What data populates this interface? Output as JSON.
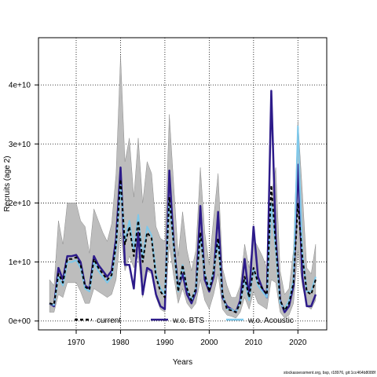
{
  "chart_data": {
    "type": "line",
    "xlabel": "Years",
    "ylabel": "Recruits (age 2)",
    "xlim": [
      1961.5,
      2026.5
    ],
    "ylim": [
      -1500000000,
      48000000000
    ],
    "x_ticks": [
      1970,
      1980,
      1990,
      2000,
      2010,
      2020
    ],
    "x_tick_labels": [
      "1970",
      "1980",
      "1990",
      "2000",
      "2010",
      "2020"
    ],
    "y_ticks": [
      0,
      10000000000,
      20000000000,
      30000000000,
      40000000000
    ],
    "y_tick_labels": [
      "0e+00",
      "1e+10",
      "2e+10",
      "3e+10",
      "4e+10"
    ],
    "grid": true,
    "legend_position": "bottom",
    "x": [
      1964,
      1965,
      1966,
      1967,
      1968,
      1969,
      1970,
      1971,
      1972,
      1973,
      1974,
      1975,
      1976,
      1977,
      1978,
      1979,
      1980,
      1981,
      1982,
      1983,
      1984,
      1985,
      1986,
      1987,
      1988,
      1989,
      1990,
      1991,
      1992,
      1993,
      1994,
      1995,
      1996,
      1997,
      1998,
      1999,
      2000,
      2001,
      2002,
      2003,
      2004,
      2005,
      2006,
      2007,
      2008,
      2009,
      2010,
      2011,
      2012,
      2013,
      2014,
      2015,
      2016,
      2017,
      2018,
      2019,
      2020,
      2021,
      2022,
      2023,
      2024
    ],
    "band": {
      "upper": [
        7.0,
        6.0,
        17.0,
        13.0,
        20.0,
        20.0,
        20.0,
        17.0,
        16.0,
        11.5,
        19.0,
        17.0,
        15.0,
        13.5,
        16.5,
        25.0,
        45.0,
        27.0,
        31.0,
        21.0,
        31.0,
        20.0,
        27.0,
        25.0,
        16.0,
        14.0,
        13.5,
        35.0,
        23.0,
        11.0,
        18.5,
        12.0,
        8.5,
        12.0,
        26.0,
        15.0,
        9.5,
        17.5,
        25.0,
        9.0,
        6.0,
        4.0,
        4.0,
        6.0,
        13.0,
        9.0,
        14.0,
        12.5,
        11.0,
        9.0,
        21.0,
        26.0,
        8.5,
        4.5,
        5.5,
        12.0,
        34.0,
        22.0,
        9.0,
        8.0,
        13.0
      ],
      "lower": [
        1.5,
        1.5,
        4.5,
        4.0,
        6.5,
        6.5,
        6.5,
        5.0,
        3.0,
        3.0,
        5.5,
        5.0,
        4.5,
        4.0,
        4.5,
        7.0,
        15.0,
        8.5,
        11.0,
        9.0,
        11.0,
        4.0,
        8.5,
        8.0,
        4.0,
        2.0,
        1.5,
        13.0,
        7.5,
        3.0,
        5.5,
        3.0,
        2.0,
        3.0,
        7.0,
        3.5,
        2.0,
        4.5,
        8.0,
        2.0,
        1.0,
        0.8,
        0.5,
        1.5,
        4.0,
        2.0,
        5.0,
        3.0,
        2.5,
        2.0,
        7.0,
        6.5,
        1.5,
        0.5,
        1.0,
        3.0,
        12.0,
        6.0,
        2.5,
        2.0,
        3.5
      ]
    },
    "series": [
      {
        "name": "current",
        "color": "#000000",
        "dash": "dashed",
        "values": [
          3.0,
          2.8,
          8.0,
          6.5,
          10.5,
          10.5,
          10.8,
          9.5,
          5.8,
          5.3,
          10.5,
          9.0,
          8.0,
          7.0,
          7.8,
          13.0,
          24.0,
          13.0,
          16.0,
          11.0,
          17.0,
          10.0,
          15.0,
          14.0,
          7.5,
          5.0,
          4.0,
          21.0,
          13.0,
          5.0,
          9.5,
          5.5,
          3.5,
          5.5,
          15.0,
          8.0,
          5.0,
          8.5,
          14.0,
          4.5,
          2.0,
          1.8,
          1.5,
          3.0,
          7.5,
          4.0,
          9.0,
          6.5,
          5.5,
          4.5,
          23.0,
          13.0,
          3.5,
          1.8,
          3.0,
          6.5,
          20.0,
          11.0,
          5.0,
          4.5,
          7.0
        ]
      },
      {
        "name": "w.o. BTS",
        "color": "#2d1b8a",
        "dash": "solid",
        "values": [
          3.0,
          2.5,
          9.0,
          7.0,
          11.0,
          11.0,
          11.2,
          10.0,
          6.0,
          5.5,
          11.0,
          9.5,
          8.5,
          7.5,
          8.5,
          14.0,
          26.0,
          9.5,
          9.5,
          5.5,
          15.0,
          4.5,
          9.0,
          8.5,
          4.5,
          2.5,
          2.0,
          25.5,
          13.0,
          5.5,
          8.0,
          4.5,
          3.0,
          5.0,
          19.5,
          7.0,
          5.0,
          7.5,
          18.5,
          4.0,
          2.5,
          2.0,
          1.5,
          3.5,
          10.5,
          4.0,
          16.0,
          7.5,
          5.5,
          4.0,
          39.0,
          14.0,
          3.5,
          1.5,
          2.5,
          6.0,
          26.5,
          7.5,
          2.5,
          2.5,
          4.5
        ]
      },
      {
        "name": "w.o. Acoustic",
        "color": "#7ec8ea",
        "dash": "solid",
        "values": [
          3.0,
          2.7,
          7.5,
          6.0,
          10.0,
          10.0,
          10.3,
          9.0,
          5.5,
          5.0,
          10.0,
          8.5,
          7.5,
          6.5,
          7.5,
          12.5,
          23.0,
          13.5,
          17.0,
          12.0,
          18.0,
          10.5,
          16.0,
          14.5,
          8.0,
          5.5,
          4.5,
          20.5,
          12.5,
          5.0,
          9.5,
          5.5,
          3.5,
          5.5,
          14.5,
          8.0,
          5.5,
          8.5,
          13.5,
          4.5,
          2.0,
          2.0,
          1.5,
          3.0,
          7.0,
          3.5,
          9.0,
          6.0,
          5.0,
          4.0,
          20.0,
          12.0,
          3.0,
          2.0,
          3.5,
          7.0,
          33.0,
          11.5,
          5.0,
          5.0,
          7.5
        ]
      }
    ],
    "value_scale_note_units": "1e+09"
  },
  "footer_text": "stockassessment.org, bsp, r18976, git:1cc464b8088f"
}
